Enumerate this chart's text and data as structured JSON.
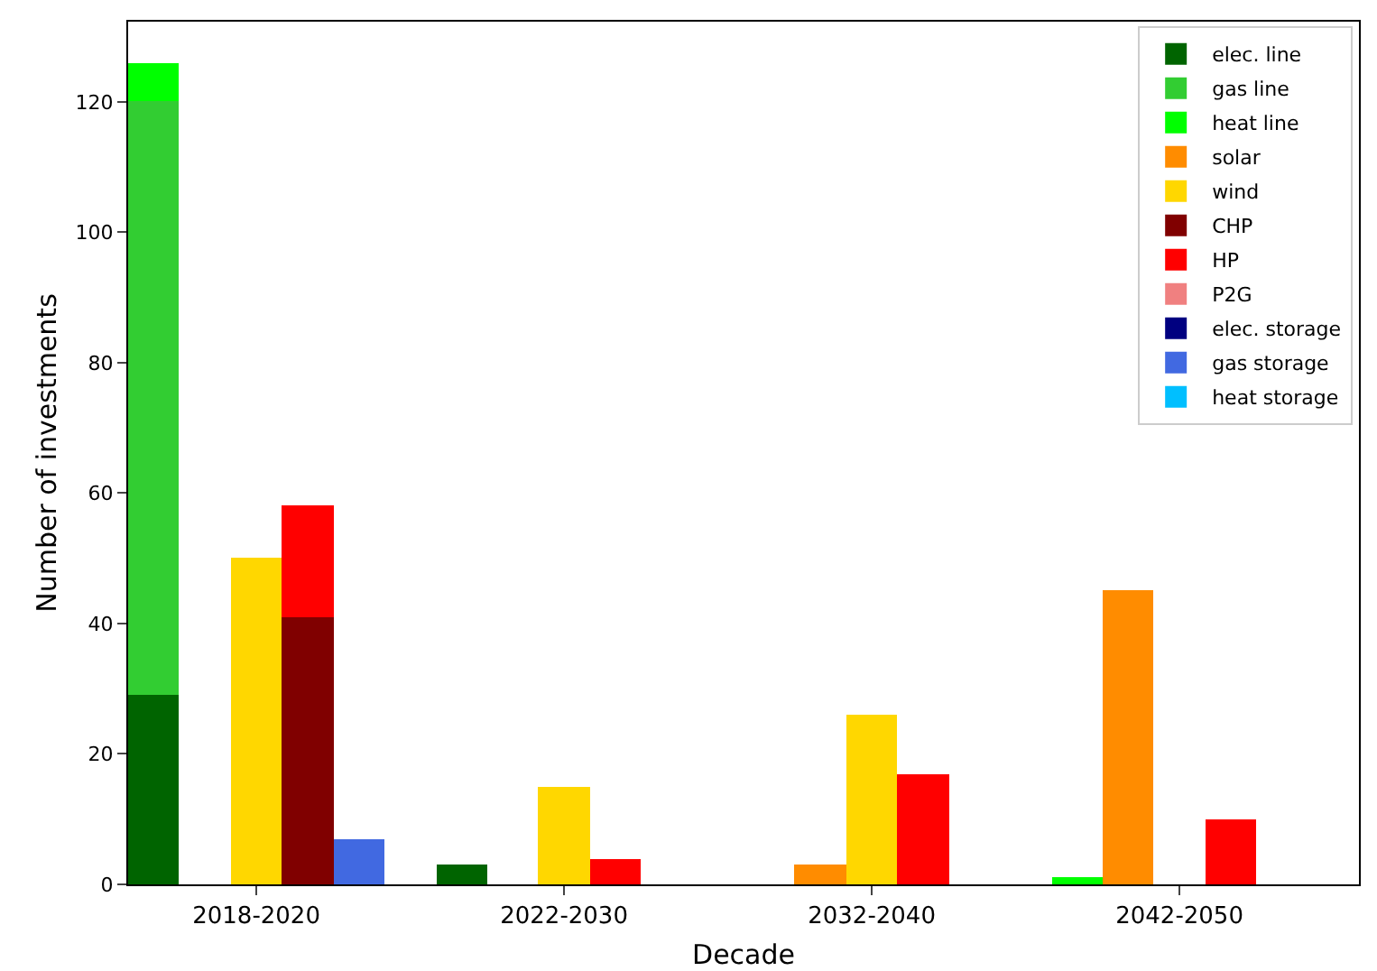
{
  "chart_data": {
    "type": "bar",
    "stacked": true,
    "xlabel": "Decade",
    "ylabel": "Number of investments",
    "categories": [
      null,
      null,
      "2018-2020",
      null,
      null,
      null,
      null,
      null,
      "2022-2030",
      null,
      null,
      null,
      null,
      null,
      "2032-2040",
      null,
      null,
      null,
      null,
      null,
      "2042-2050",
      null,
      null,
      null
    ],
    "series": [
      {
        "name": "elec. line",
        "color": "#006400",
        "values": [
          29,
          null,
          null,
          null,
          null,
          null,
          3,
          null,
          null,
          null,
          null,
          null,
          null,
          null,
          null,
          null,
          null,
          null,
          null,
          null,
          null,
          null,
          null,
          null
        ]
      },
      {
        "name": "gas line",
        "color": "#32cd32",
        "values": [
          91,
          null,
          null,
          null,
          null,
          null,
          null,
          null,
          null,
          null,
          null,
          null,
          null,
          null,
          null,
          null,
          null,
          null,
          null,
          null,
          null,
          null,
          null,
          null
        ]
      },
      {
        "name": "heat line",
        "color": "#00ff00",
        "values": [
          6,
          null,
          null,
          null,
          null,
          null,
          null,
          null,
          null,
          null,
          null,
          null,
          null,
          null,
          null,
          null,
          null,
          null,
          1,
          null,
          null,
          null,
          null,
          null
        ]
      },
      {
        "name": "solar",
        "color": "#ff8c00",
        "values": [
          null,
          null,
          null,
          null,
          null,
          null,
          null,
          null,
          null,
          null,
          null,
          null,
          null,
          3,
          null,
          null,
          null,
          null,
          null,
          45,
          null,
          null,
          null,
          null
        ]
      },
      {
        "name": "wind",
        "color": "#ffd700",
        "values": [
          null,
          null,
          50,
          null,
          null,
          null,
          null,
          null,
          15,
          null,
          null,
          null,
          null,
          null,
          26,
          null,
          null,
          null,
          null,
          null,
          null,
          null,
          null,
          null
        ]
      },
      {
        "name": "CHP",
        "color": "#800000",
        "values": [
          null,
          null,
          null,
          41,
          null,
          null,
          null,
          null,
          null,
          null,
          null,
          null,
          null,
          null,
          null,
          null,
          null,
          null,
          null,
          null,
          null,
          null,
          null,
          null
        ]
      },
      {
        "name": "HP",
        "color": "#ff0000",
        "values": [
          null,
          null,
          null,
          17,
          null,
          null,
          null,
          null,
          null,
          4,
          null,
          null,
          null,
          null,
          null,
          17,
          null,
          null,
          null,
          null,
          null,
          10,
          null,
          null
        ]
      },
      {
        "name": "P2G",
        "color": "#f08080",
        "values": [
          null,
          null,
          null,
          null,
          null,
          null,
          null,
          null,
          null,
          null,
          null,
          null,
          null,
          null,
          null,
          null,
          null,
          null,
          null,
          null,
          null,
          null,
          null,
          null
        ]
      },
      {
        "name": "elec. storage",
        "color": "#000080",
        "values": [
          null,
          null,
          null,
          null,
          null,
          null,
          null,
          null,
          null,
          null,
          null,
          null,
          null,
          null,
          null,
          null,
          null,
          null,
          null,
          null,
          null,
          null,
          null,
          null
        ]
      },
      {
        "name": "gas storage",
        "color": "#4169e1",
        "values": [
          null,
          null,
          null,
          null,
          7,
          null,
          null,
          null,
          null,
          null,
          null,
          null,
          null,
          null,
          null,
          null,
          null,
          null,
          null,
          null,
          null,
          null,
          null,
          null
        ]
      },
      {
        "name": "heat storage",
        "color": "#00bfff",
        "values": [
          null,
          null,
          null,
          null,
          null,
          null,
          null,
          null,
          null,
          null,
          null,
          null,
          null,
          null,
          null,
          null,
          null,
          null,
          null,
          null,
          null,
          null,
          null,
          null
        ]
      }
    ],
    "ylim": [
      0,
      132.3
    ],
    "yticks": [
      0,
      20,
      40,
      60,
      80,
      100,
      120
    ],
    "grid": false,
    "legend": "top right"
  }
}
